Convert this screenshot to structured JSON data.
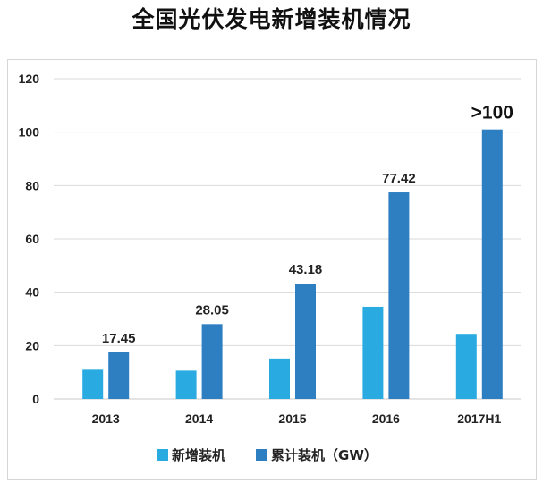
{
  "title": "全国光伏发电新增装机情况",
  "chart_data": {
    "type": "bar",
    "categories": [
      "2013",
      "2014",
      "2015",
      "2016",
      "2017H1"
    ],
    "series": [
      {
        "name": "新增装机",
        "values": [
          10.95,
          10.6,
          15.13,
          34.54,
          24.4
        ],
        "color": "#29abe2"
      },
      {
        "name": "累计装机（GW）",
        "values": [
          17.45,
          28.05,
          43.18,
          77.42,
          101
        ],
        "color": "#2e7ec2"
      }
    ],
    "data_labels": [
      "17.45",
      "28.05",
      "43.18",
      "77.42",
      ">100"
    ],
    "yticks": [
      "0",
      "20",
      "40",
      "60",
      "80",
      "100",
      "120"
    ],
    "ylim": [
      0,
      120
    ],
    "grid": true,
    "legend_position": "bottom"
  }
}
